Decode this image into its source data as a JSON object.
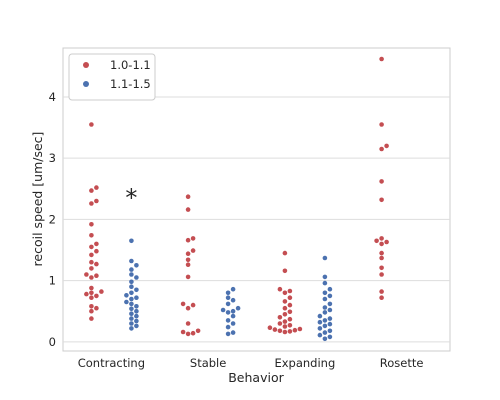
{
  "chart_data": {
    "type": "scatter",
    "title": "",
    "xlabel": "Behavior",
    "ylabel": "recoil speed [um/sec]",
    "categories": [
      "Contracting",
      "Stable",
      "Expanding",
      "Rosette"
    ],
    "ylim": [
      -0.15,
      4.8
    ],
    "yticks": [
      0,
      1,
      2,
      3,
      4
    ],
    "grid": true,
    "legend": {
      "placement": "top-left"
    },
    "series": [
      {
        "name": "1.0-1.1",
        "color": "#c44e52",
        "values": [
          [
            3.55,
            2.52,
            2.47,
            2.3,
            2.26,
            1.92,
            1.74,
            1.6,
            1.55,
            1.48,
            1.42,
            1.3,
            1.27,
            1.2,
            1.1,
            1.08,
            1.05,
            0.88,
            0.82,
            0.8,
            0.78,
            0.75,
            0.72,
            0.58,
            0.55,
            0.5,
            0.38
          ],
          [
            2.37,
            2.16,
            1.69,
            1.66,
            1.49,
            1.44,
            1.34,
            1.26,
            1.06,
            0.62,
            0.6,
            0.55,
            0.3,
            0.18,
            0.16,
            0.14,
            0.13
          ],
          [
            1.45,
            1.16,
            0.86,
            0.83,
            0.8,
            0.72,
            0.66,
            0.6,
            0.55,
            0.49,
            0.45,
            0.4,
            0.37,
            0.33,
            0.3,
            0.27,
            0.25,
            0.23,
            0.21,
            0.2,
            0.19,
            0.18,
            0.17,
            0.16
          ],
          [
            4.62,
            3.55,
            3.2,
            3.15,
            2.62,
            2.32,
            1.69,
            1.65,
            1.63,
            1.6,
            1.45,
            1.37,
            1.21,
            1.1,
            0.82,
            0.72
          ]
        ]
      },
      {
        "name": "1.1-1.5",
        "color": "#4c72b0",
        "values": [
          [
            1.65,
            1.32,
            1.25,
            1.18,
            1.1,
            1.05,
            0.98,
            0.9,
            0.85,
            0.8,
            0.76,
            0.72,
            0.7,
            0.65,
            0.62,
            0.58,
            0.54,
            0.5,
            0.46,
            0.42,
            0.38,
            0.34,
            0.3,
            0.26,
            0.22
          ],
          [
            0.86,
            0.8,
            0.72,
            0.68,
            0.62,
            0.55,
            0.52,
            0.5,
            0.48,
            0.42,
            0.35,
            0.3,
            0.24,
            0.15,
            0.13
          ],
          [
            1.37,
            1.06,
            0.96,
            0.86,
            0.8,
            0.75,
            0.7,
            0.62,
            0.56,
            0.52,
            0.48,
            0.42,
            0.38,
            0.35,
            0.32,
            0.29,
            0.26,
            0.22,
            0.18,
            0.15,
            0.11,
            0.08,
            0.05
          ],
          []
        ]
      }
    ],
    "annotations": [
      {
        "text": "*",
        "category": "Contracting",
        "y": 2.38
      }
    ]
  }
}
